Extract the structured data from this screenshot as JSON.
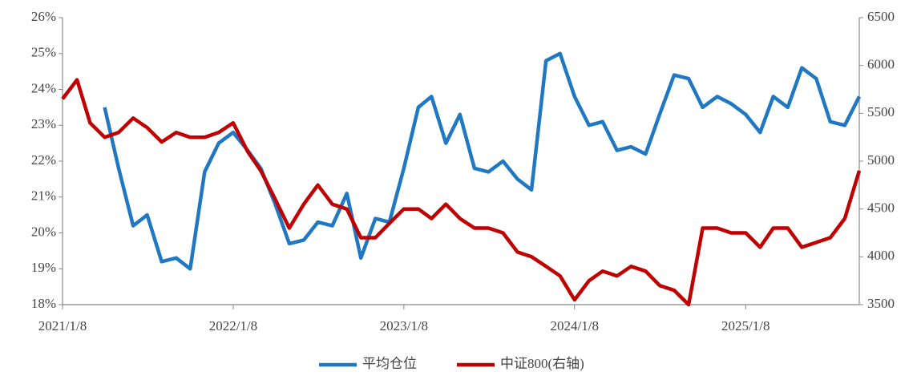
{
  "chart_data": {
    "type": "line",
    "x": [
      "2021/1/8",
      "2021/2/8",
      "2021/3/8",
      "2021/4/8",
      "2021/5/8",
      "2021/6/8",
      "2021/7/8",
      "2021/8/8",
      "2021/9/8",
      "2021/10/8",
      "2021/11/8",
      "2021/12/8",
      "2022/1/8",
      "2022/2/8",
      "2022/3/8",
      "2022/4/8",
      "2022/5/8",
      "2022/6/8",
      "2022/7/8",
      "2022/8/8",
      "2022/9/8",
      "2022/10/8",
      "2022/11/8",
      "2022/12/8",
      "2023/1/8",
      "2023/2/8",
      "2023/3/8",
      "2023/4/8",
      "2023/5/8",
      "2023/6/8",
      "2023/7/8",
      "2023/8/8",
      "2023/9/8",
      "2023/10/8",
      "2023/11/8",
      "2023/12/8",
      "2024/1/8",
      "2024/2/8",
      "2024/3/8",
      "2024/4/8",
      "2024/5/8",
      "2024/6/8",
      "2024/7/8",
      "2024/8/8",
      "2024/9/8",
      "2024/10/8",
      "2024/11/8",
      "2024/12/8",
      "2025/1/8",
      "2025/2/8",
      "2025/3/8",
      "2025/4/8",
      "2025/5/8",
      "2025/6/8",
      "2025/7/8",
      "2025/8/8",
      "2025/9/8"
    ],
    "series": [
      {
        "name": "平均仓位",
        "color": "#1f78c1",
        "axis": "y",
        "values": [
          null,
          null,
          null,
          23.5,
          21.8,
          20.2,
          20.5,
          19.2,
          19.3,
          19.0,
          21.7,
          22.5,
          22.8,
          22.3,
          21.8,
          20.8,
          19.7,
          19.8,
          20.3,
          20.2,
          21.1,
          19.3,
          20.4,
          20.3,
          21.8,
          23.5,
          23.8,
          22.5,
          23.3,
          21.8,
          21.7,
          22.0,
          21.5,
          21.2,
          24.8,
          25.0,
          23.8,
          23.0,
          23.1,
          22.3,
          22.4,
          22.2,
          23.3,
          24.4,
          24.3,
          23.5,
          23.8,
          23.6,
          23.3,
          22.8,
          23.8,
          23.5,
          24.6,
          24.3,
          23.1,
          23.0,
          23.8
        ]
      },
      {
        "name": "中证800(右轴)",
        "color": "#c00000",
        "axis": "y2",
        "values": [
          5650,
          5850,
          5400,
          5250,
          5300,
          5450,
          5350,
          5200,
          5300,
          5250,
          5250,
          5300,
          5400,
          5100,
          4900,
          4600,
          4300,
          4550,
          4750,
          4550,
          4500,
          4200,
          4200,
          4350,
          4500,
          4500,
          4400,
          4550,
          4400,
          4300,
          4300,
          4250,
          4050,
          4000,
          3900,
          3800,
          3550,
          3750,
          3850,
          3800,
          3900,
          3850,
          3700,
          3650,
          3500,
          4300,
          4300,
          4250,
          4250,
          4100,
          4300,
          4300,
          4100,
          4150,
          4200,
          4400,
          4900
        ]
      }
    ],
    "xlim": [
      "2021/1/8",
      "2025/9/8"
    ],
    "xticks": [
      "2021/1/8",
      "2022/1/8",
      "2023/1/8",
      "2024/1/8",
      "2025/1/8"
    ],
    "ylim": [
      18,
      26
    ],
    "yticks": [
      {
        "value": 18,
        "label": "18%"
      },
      {
        "value": 19,
        "label": "19%"
      },
      {
        "value": 20,
        "label": "20%"
      },
      {
        "value": 21,
        "label": "21%"
      },
      {
        "value": 22,
        "label": "22%"
      },
      {
        "value": 23,
        "label": "23%"
      },
      {
        "value": 24,
        "label": "24%"
      },
      {
        "value": 25,
        "label": "25%"
      },
      {
        "value": 26,
        "label": "26%"
      }
    ],
    "y2lim": [
      3500,
      6500
    ],
    "y2ticks": [
      3500,
      4000,
      4500,
      5000,
      5500,
      6000,
      6500
    ],
    "legend": "bottom"
  }
}
